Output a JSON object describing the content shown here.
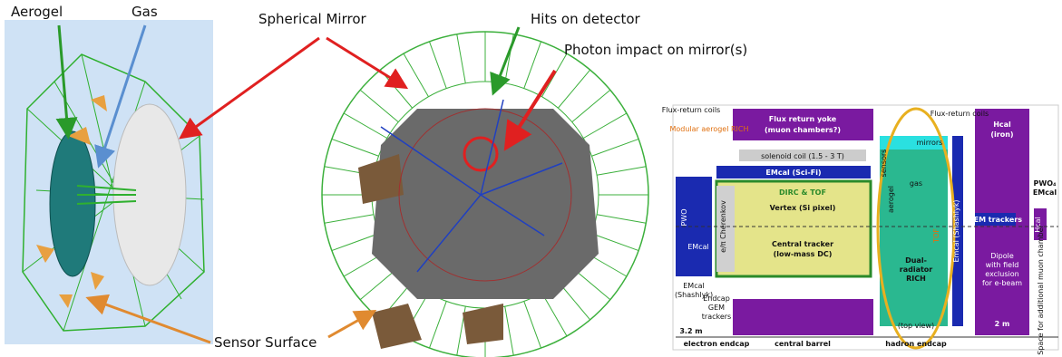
{
  "annotations": {
    "aerogel": "Aerogel",
    "gas": "Gas",
    "spherical_mirror": "Spherical Mirror",
    "hits_on_detector": "Hits on detector",
    "photon_impact": "Photon impact on mirror(s)",
    "sensor_surface": "Sensor Surface"
  },
  "schematic": {
    "flux_return_coils_left": "Flux-return coils",
    "modular_rich": "Modular aerogel RICH",
    "flux_yoke": "Flux return yoke",
    "muon_chambers": "(muon chambers?)",
    "solenoid": "solenoid coil (1.5 - 3 T)",
    "emcal_scifi": "EMcal (Sci-Fi)",
    "dirc": "DIRC & TOF",
    "vertex": "Vertex (Si pixel)",
    "central_tracker": "Central tracker",
    "low_mass_dc": "(low-mass DC)",
    "cherenkov": "e/π Cherenkov",
    "pwo_left": "PWO",
    "emcal_left": "EMcal",
    "emcal_shashlyk_left": "EMcal",
    "shashlyk_left": "(Shashlyk)",
    "endcap_gem": "Endcap",
    "gem": "GEM",
    "trackers": "trackers",
    "length_left": "3.2 m",
    "mirrors": "mirrors",
    "gas": "gas",
    "aerogel": "aerogel",
    "sensors": "sensors",
    "tof": "TOF",
    "dual": "Dual-",
    "radiator": "radiator",
    "rich": "RICH",
    "top_view": "(top view)",
    "emcal_shashlyk_right": "Emcal (Shashlyk)",
    "flux_return_coils_right": "Flux-return coils",
    "hcal_iron": "Hcal",
    "iron": "(iron)",
    "pwo4": "PWO₄",
    "emcal_right": "EMcal",
    "gem_trackers": "GEM trackers",
    "hcal_small": "Hcal",
    "dipole": "Dipole",
    "with_field": "with field",
    "exclusion": "exclusion",
    "for_ebeam": "for e-beam",
    "muon_space": "Space for additional muon chamber",
    "length_right": "2 m",
    "electron_endcap": "electron endcap",
    "central_barrel": "central barrel",
    "hadron_endcap": "hadron endcap"
  }
}
